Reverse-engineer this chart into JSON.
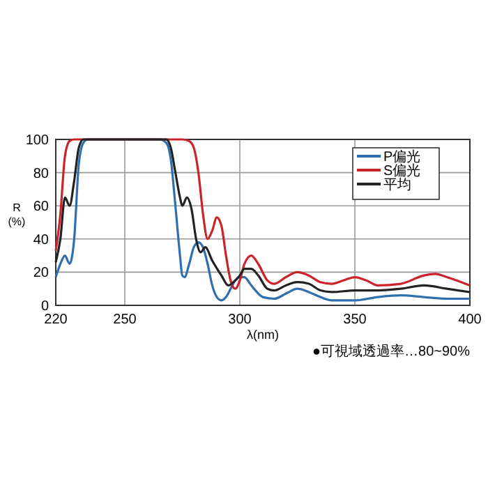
{
  "chart_data": {
    "type": "line",
    "ylabel": "R\n(%)",
    "xlabel": "λ(nm)",
    "annotations": [
      "●可視域透過率…80~90%"
    ],
    "xlim": [
      220,
      400
    ],
    "xticks": [
      220,
      250,
      300,
      350,
      400
    ],
    "ylim": [
      0,
      100
    ],
    "yticks": [
      0,
      20,
      40,
      60,
      80,
      100
    ],
    "grid": true,
    "legend": "top right",
    "marker": "none",
    "line_style": "solid",
    "series": [
      {
        "name": "P偏光",
        "color": "#2f6fb0",
        "x": [
          220,
          222,
          224,
          226,
          228,
          230,
          232,
          234,
          265,
          268,
          270,
          272,
          274,
          275,
          276,
          278,
          280,
          282,
          284,
          286,
          288,
          290,
          292,
          294,
          296,
          298,
          300,
          302,
          305,
          310,
          315,
          320,
          325,
          330,
          335,
          340,
          350,
          360,
          370,
          380,
          390,
          400
        ],
        "values": [
          17,
          25,
          30,
          25,
          40,
          85,
          98,
          100,
          100,
          98,
          88,
          60,
          30,
          18,
          17,
          25,
          35,
          38,
          35,
          25,
          12,
          5,
          3,
          5,
          10,
          15,
          17,
          17,
          12,
          5,
          4,
          7,
          10,
          8,
          5,
          3,
          3,
          5,
          6,
          5,
          4,
          4
        ]
      },
      {
        "name": "S偏光",
        "color": "#cc2229",
        "x": [
          220,
          222,
          224,
          226,
          228,
          275,
          278,
          280,
          282,
          284,
          286,
          288,
          290,
          292,
          294,
          296,
          298,
          300,
          302,
          305,
          308,
          312,
          315,
          320,
          325,
          330,
          335,
          340,
          345,
          350,
          355,
          360,
          370,
          380,
          385,
          390,
          400
        ],
        "values": [
          33,
          55,
          90,
          99,
          100,
          100,
          99,
          95,
          80,
          55,
          40,
          45,
          53,
          48,
          30,
          15,
          10,
          15,
          25,
          30,
          25,
          15,
          13,
          17,
          20,
          18,
          14,
          13,
          15,
          17,
          15,
          12,
          13,
          18,
          19,
          17,
          12
        ]
      },
      {
        "name": "平均",
        "color": "#222222",
        "x": [
          220,
          222,
          224,
          226,
          228,
          230,
          232,
          268,
          270,
          272,
          274,
          275,
          277,
          279,
          281,
          283,
          285,
          288,
          292,
          295,
          298,
          300,
          302,
          305,
          308,
          312,
          315,
          320,
          325,
          330,
          335,
          340,
          350,
          360,
          370,
          380,
          390,
          400
        ],
        "values": [
          26,
          40,
          65,
          60,
          75,
          95,
          100,
          100,
          95,
          80,
          65,
          60,
          65,
          58,
          40,
          32,
          35,
          27,
          18,
          12,
          15,
          18,
          22,
          22,
          18,
          10,
          9,
          12,
          14,
          13,
          9,
          8,
          9,
          9,
          10,
          12,
          10,
          8
        ]
      }
    ]
  }
}
